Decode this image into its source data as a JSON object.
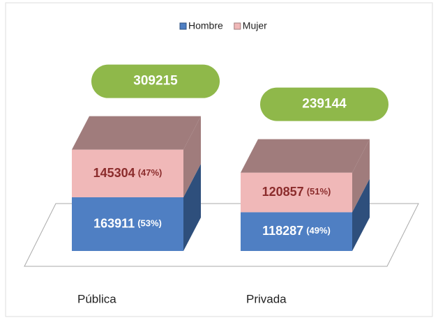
{
  "chart_data": {
    "type": "bar3d_stacked",
    "categories": [
      "Pública",
      "Privada"
    ],
    "series": [
      {
        "name": "Hombre",
        "color": "#4f7fc3",
        "side_color": "#2e4f7c",
        "label_color": "#ffffff",
        "values": [
          163911,
          118287
        ],
        "percent_labels": [
          "(53%)",
          "(49%)"
        ]
      },
      {
        "name": "Mujer",
        "color": "#f0b8b8",
        "side_color": "#a07c7c",
        "label_color": "#8b2c2c",
        "values": [
          145304,
          120857
        ],
        "percent_labels": [
          "(47%)",
          "(51%)"
        ]
      }
    ],
    "totals": [
      309215,
      239144
    ],
    "total_color": "#8fb84a"
  }
}
